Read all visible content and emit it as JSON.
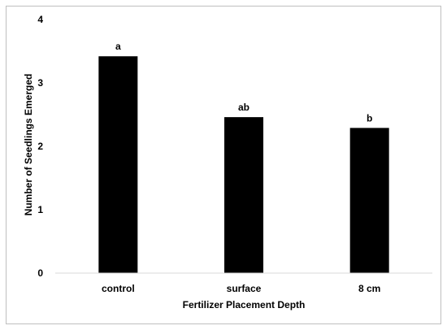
{
  "chart_data": {
    "type": "bar",
    "title": "",
    "xlabel": "Fertilizer Placement Depth",
    "ylabel": "Number of Seedlings Emerged",
    "categories": [
      "control",
      "surface",
      "8 cm"
    ],
    "values": [
      3.42,
      2.46,
      2.29
    ],
    "bar_labels": [
      "a",
      "ab",
      "b"
    ],
    "ylim": [
      0,
      4
    ],
    "yticks": [
      "0",
      "1",
      "2",
      "3",
      "4"
    ],
    "grid": false,
    "legend": "none",
    "bar_color": "#000000"
  }
}
